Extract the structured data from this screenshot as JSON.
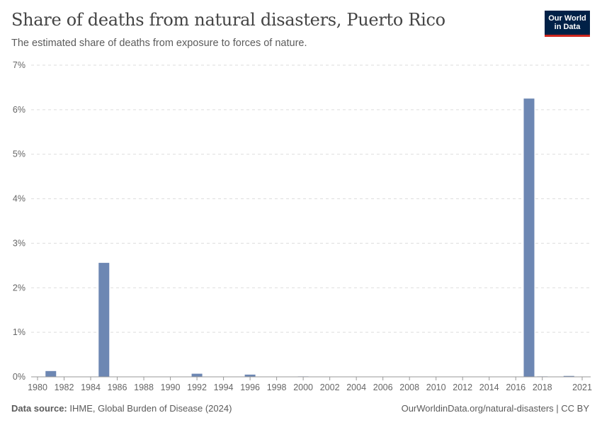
{
  "header": {
    "title": "Share of deaths from natural disasters, Puerto Rico",
    "subtitle": "The estimated share of deaths from exposure to forces of nature."
  },
  "logo": {
    "line1": "Our World",
    "line2": "in Data",
    "bg_color": "#002147",
    "accent_color": "#ce261e"
  },
  "footer": {
    "source_label": "Data source:",
    "source_text": "IHME, Global Burden of Disease (2024)",
    "url_text": "OurWorldinData.org/natural-disasters | CC BY"
  },
  "chart_data": {
    "type": "bar",
    "bar_color": "#6d87b3",
    "ylim": [
      0,
      7
    ],
    "y_ticks": [
      0,
      1,
      2,
      3,
      4,
      5,
      6,
      7
    ],
    "y_tick_labels": [
      "0%",
      "1%",
      "2%",
      "3%",
      "4%",
      "5%",
      "6%",
      "7%"
    ],
    "grid": true,
    "x_tick_labels": [
      "1980",
      "1982",
      "1984",
      "1986",
      "1988",
      "1990",
      "1992",
      "1994",
      "1996",
      "1998",
      "2000",
      "2002",
      "2004",
      "2006",
      "2008",
      "2010",
      "2012",
      "2014",
      "2016",
      "2018",
      "2021"
    ],
    "x_tick_years": [
      1980,
      1982,
      1984,
      1986,
      1988,
      1990,
      1992,
      1994,
      1996,
      1998,
      2000,
      2002,
      2004,
      2006,
      2008,
      2010,
      2012,
      2014,
      2016,
      2018,
      2021
    ],
    "x": [
      1980,
      1981,
      1982,
      1983,
      1984,
      1985,
      1986,
      1987,
      1988,
      1989,
      1990,
      1991,
      1992,
      1993,
      1994,
      1995,
      1996,
      1997,
      1998,
      1999,
      2000,
      2001,
      2002,
      2003,
      2004,
      2005,
      2006,
      2007,
      2008,
      2009,
      2010,
      2011,
      2012,
      2013,
      2014,
      2015,
      2016,
      2017,
      2018,
      2019,
      2020,
      2021
    ],
    "values": [
      0,
      0.13,
      0,
      0,
      0,
      2.56,
      0,
      0,
      0,
      0,
      0,
      0,
      0.07,
      0,
      0,
      0,
      0.05,
      0,
      0,
      0,
      0.01,
      0,
      0.005,
      0.005,
      0.005,
      0,
      0.005,
      0.005,
      0.005,
      0,
      0.005,
      0.005,
      0,
      0,
      0,
      0,
      0,
      6.25,
      0.01,
      0,
      0.02,
      0
    ]
  }
}
